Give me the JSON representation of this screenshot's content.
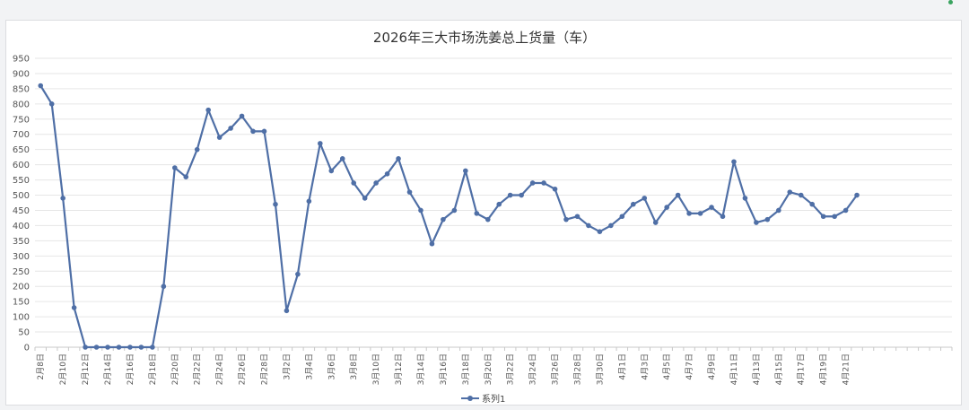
{
  "chart_data": {
    "type": "line",
    "title": "2026年三大市场洗姜总上货量（车）",
    "ylim": [
      0,
      950
    ],
    "ytick_step": 50,
    "grid": true,
    "legend_position": "bottom",
    "line_color": "#4f6fa6",
    "x": [
      "2月8日",
      "2月9日",
      "2月10日",
      "2月11日",
      "2月12日",
      "2月13日",
      "2月14日",
      "2月15日",
      "2月16日",
      "2月17日",
      "2月18日",
      "2月19日",
      "2月20日",
      "2月21日",
      "2月22日",
      "2月23日",
      "2月24日",
      "2月25日",
      "2月26日",
      "2月27日",
      "2月28日",
      "3月1日",
      "3月2日",
      "3月3日",
      "3月4日",
      "3月5日",
      "3月6日",
      "3月7日",
      "3月8日",
      "3月9日",
      "3月10日",
      "3月11日",
      "3月12日",
      "3月13日",
      "3月14日",
      "3月15日",
      "3月16日",
      "3月17日",
      "3月18日",
      "3月19日",
      "3月20日",
      "3月21日",
      "3月22日",
      "3月23日",
      "3月24日",
      "3月25日",
      "3月26日",
      "3月27日",
      "3月28日",
      "3月29日",
      "3月30日",
      "3月31日",
      "4月1日",
      "4月2日",
      "4月3日",
      "4月4日",
      "4月5日",
      "4月6日",
      "4月7日",
      "4月8日",
      "4月9日",
      "4月10日",
      "4月11日",
      "4月12日",
      "4月13日",
      "4月14日",
      "4月15日",
      "4月16日",
      "4月17日",
      "4月18日",
      "4月19日",
      "4月20日",
      "4月21日",
      "4月22日"
    ],
    "total_slots": 82,
    "series": [
      {
        "name": "系列1",
        "values": [
          860,
          800,
          490,
          130,
          0,
          0,
          0,
          0,
          0,
          0,
          0,
          200,
          590,
          560,
          650,
          780,
          690,
          720,
          760,
          710,
          710,
          470,
          120,
          240,
          480,
          670,
          580,
          620,
          540,
          490,
          540,
          570,
          620,
          510,
          450,
          340,
          420,
          450,
          580,
          440,
          420,
          470,
          500,
          500,
          540,
          540,
          520,
          420,
          430,
          400,
          380,
          400,
          430,
          470,
          490,
          410,
          460,
          500,
          440,
          440,
          460,
          430,
          610,
          490,
          410,
          420,
          450,
          510,
          500,
          470,
          430,
          430,
          450,
          500
        ]
      }
    ]
  }
}
